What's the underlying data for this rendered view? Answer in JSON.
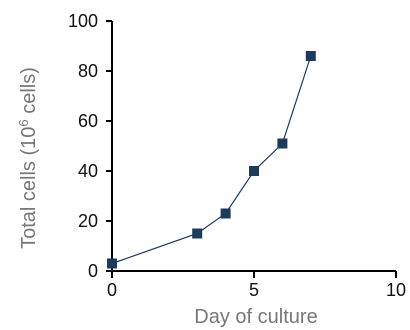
{
  "chart_data": {
    "type": "line",
    "xlabel": "Day of culture",
    "ylabel": {
      "prefix": "Total cells (10",
      "superscript": "6",
      "suffix": " cells)"
    },
    "xlim": [
      0,
      10
    ],
    "ylim": [
      0,
      100
    ],
    "x_ticks": [
      "0",
      "5",
      "10"
    ],
    "y_ticks": [
      "0",
      "20",
      "40",
      "60",
      "80",
      "100"
    ],
    "grid": false,
    "series": [
      {
        "x": [
          0,
          3,
          4,
          5,
          6,
          7
        ],
        "y": [
          3,
          15,
          23,
          40,
          51,
          86
        ],
        "color": "#1b3a5c",
        "marker": "square"
      }
    ]
  }
}
